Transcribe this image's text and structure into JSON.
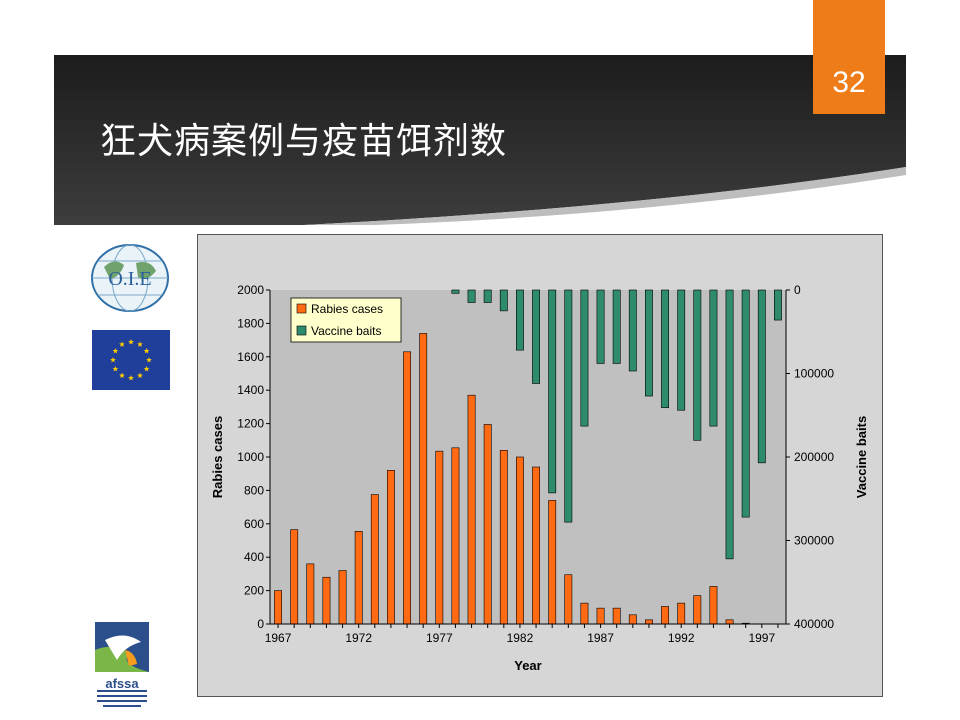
{
  "slide": {
    "title": "狂犬病案例与疫苗饵剂数",
    "page_number": "32"
  },
  "logos": {
    "oie": "O.I.E",
    "afssa": "afssa"
  },
  "colors": {
    "banner": "#2b2b2b",
    "accent": "#ee7d19",
    "rabies_bar": "#ff6a13",
    "bait_bar": "#2e8b6e",
    "plot_bg": "#c0c0c0"
  },
  "chart_data": {
    "type": "bar",
    "xlabel": "Year",
    "ylabel": "Rabies cases",
    "y2label": "Vaccine baits",
    "ylim": [
      0,
      2000
    ],
    "y2lim": [
      0,
      400000
    ],
    "y2_inverted": true,
    "yticks": [
      "0",
      "200",
      "400",
      "600",
      "800",
      "1000",
      "1200",
      "1400",
      "1600",
      "1800",
      "2000"
    ],
    "y2ticks": [
      "0",
      "100000",
      "200000",
      "300000",
      "400000"
    ],
    "xticks": [
      "1967",
      "1972",
      "1977",
      "1982",
      "1987",
      "1992",
      "1997"
    ],
    "legend_position": "top-left",
    "legend": [
      "Rabies cases",
      "Vaccine baits"
    ],
    "grid": false,
    "years": [
      1967,
      1968,
      1969,
      1970,
      1971,
      1972,
      1973,
      1974,
      1975,
      1976,
      1977,
      1978,
      1979,
      1980,
      1981,
      1982,
      1983,
      1984,
      1985,
      1986,
      1987,
      1988,
      1989,
      1990,
      1991,
      1992,
      1993,
      1994,
      1995,
      1996,
      1997,
      1998
    ],
    "series": [
      {
        "name": "Rabies cases",
        "axis": "left",
        "values": [
          200,
          565,
          360,
          280,
          320,
          555,
          775,
          920,
          1630,
          1740,
          1035,
          1055,
          1370,
          1195,
          1040,
          1000,
          940,
          740,
          295,
          125,
          95,
          95,
          55,
          25,
          105,
          125,
          170,
          225,
          25,
          5,
          0,
          0
        ]
      },
      {
        "name": "Vaccine baits",
        "axis": "right",
        "values": [
          0,
          0,
          0,
          0,
          0,
          0,
          0,
          0,
          0,
          0,
          0,
          4000,
          15000,
          15000,
          25000,
          72000,
          112000,
          243000,
          278000,
          163000,
          88000,
          88000,
          97000,
          127000,
          141000,
          144000,
          180000,
          163000,
          322000,
          272000,
          207000,
          36000
        ]
      }
    ]
  }
}
